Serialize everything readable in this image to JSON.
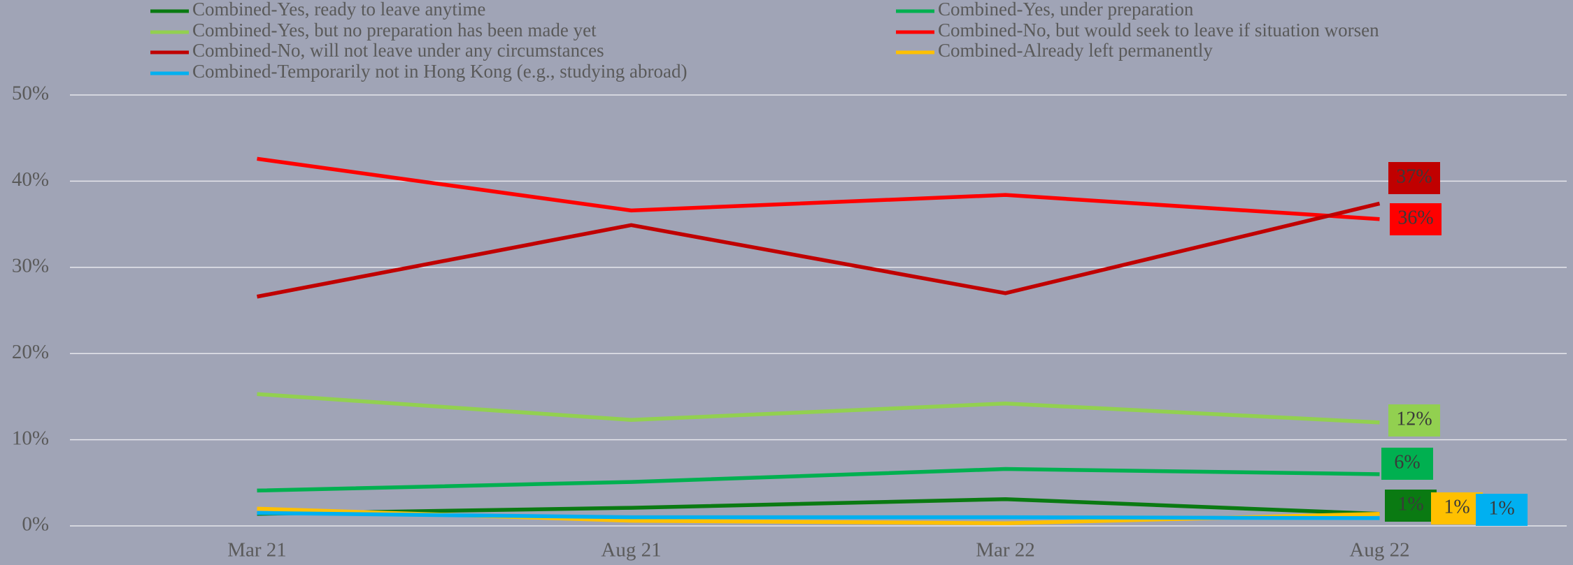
{
  "chart_data": {
    "type": "line",
    "categories": [
      "Mar 21",
      "Aug 21",
      "Mar 22",
      "Aug 22"
    ],
    "ylim": [
      0,
      50
    ],
    "yticks": [
      {
        "value": 0,
        "label": "0%"
      },
      {
        "value": 10,
        "label": "10%"
      },
      {
        "value": 20,
        "label": "20%"
      },
      {
        "value": 30,
        "label": "30%"
      },
      {
        "value": 40,
        "label": "40%"
      },
      {
        "value": 50,
        "label": "50%"
      }
    ],
    "grid": true,
    "legend": "top",
    "series": [
      {
        "name": "Combined-Yes, ready to leave anytime",
        "color": "#0a7a12",
        "values": [
          1.4,
          2.1,
          3.1,
          1.4
        ],
        "value_labels": [
          null,
          null,
          null,
          "1%"
        ]
      },
      {
        "name": "Combined-Yes, under preparation",
        "color": "#00b050",
        "values": [
          4.1,
          5.1,
          6.6,
          6.0
        ],
        "value_labels": [
          null,
          null,
          null,
          "6%"
        ]
      },
      {
        "name": "Combined-Yes, but no preparation has been made yet",
        "color": "#92d050",
        "values": [
          15.3,
          12.3,
          14.2,
          12.0
        ],
        "value_labels": [
          null,
          null,
          null,
          "12%"
        ]
      },
      {
        "name": "Combined-No, but would seek to leave if situation worsen",
        "color": "#ff0000",
        "values": [
          42.6,
          36.6,
          38.4,
          35.6
        ],
        "value_labels": [
          null,
          null,
          null,
          "36%"
        ]
      },
      {
        "name": "Combined-No, will not leave under any circumstances",
        "color": "#c00000",
        "values": [
          26.6,
          34.9,
          27.0,
          37.4
        ],
        "value_labels": [
          null,
          null,
          null,
          "37%"
        ]
      },
      {
        "name": "Combined-Already left permanently",
        "color": "#ffc000",
        "values": [
          2.0,
          0.6,
          0.3,
          1.4
        ],
        "value_labels": [
          null,
          null,
          null,
          "1%"
        ]
      },
      {
        "name": "Combined-Temporarily not in Hong Kong (e.g., studying abroad)",
        "color": "#00b0f0",
        "values": [
          1.5,
          1.0,
          1.0,
          0.9
        ],
        "value_labels": [
          null,
          null,
          null,
          "1%"
        ]
      }
    ]
  }
}
